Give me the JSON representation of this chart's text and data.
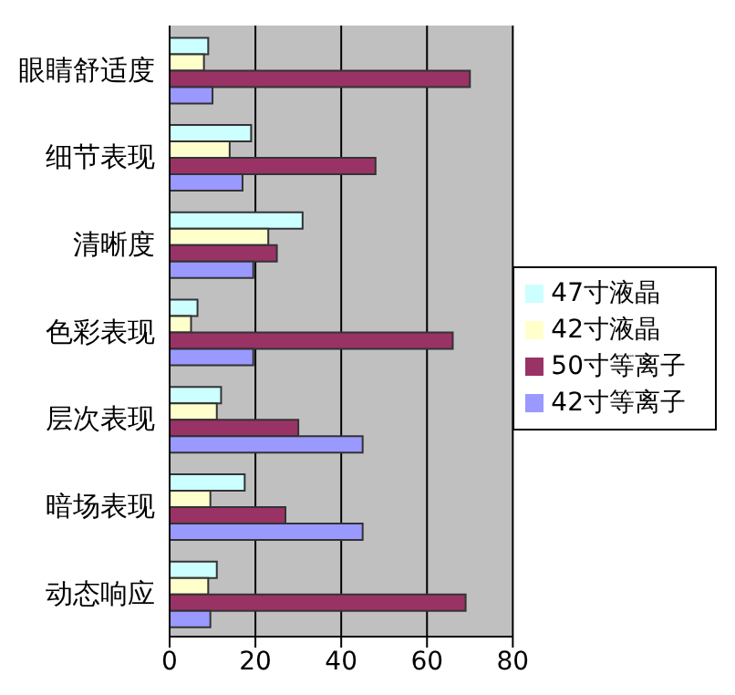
{
  "chart_data": {
    "type": "bar",
    "orientation": "horizontal",
    "categories": [
      "眼睛舒适度",
      "细节表现",
      "清晰度",
      "色彩表现",
      "层次表现",
      "暗场表现",
      "动态响应"
    ],
    "series": [
      {
        "name": "47寸液晶",
        "color": "#ccffff",
        "values": [
          9,
          19,
          31,
          6.5,
          12,
          17.5,
          11
        ]
      },
      {
        "name": "42寸液晶",
        "color": "#ffffcc",
        "values": [
          8,
          14,
          23,
          5,
          11,
          9.5,
          9
        ]
      },
      {
        "name": "50寸等离子",
        "color": "#993366",
        "values": [
          70,
          48,
          25,
          66,
          30,
          27,
          69
        ]
      },
      {
        "name": "42寸等离子",
        "color": "#9999ff",
        "values": [
          10,
          17,
          19.5,
          19.5,
          45,
          45,
          9.5
        ]
      }
    ],
    "xlim": [
      0,
      80
    ],
    "xticks": [
      0,
      20,
      40,
      60,
      80
    ],
    "grid": "x",
    "legend": "right"
  }
}
